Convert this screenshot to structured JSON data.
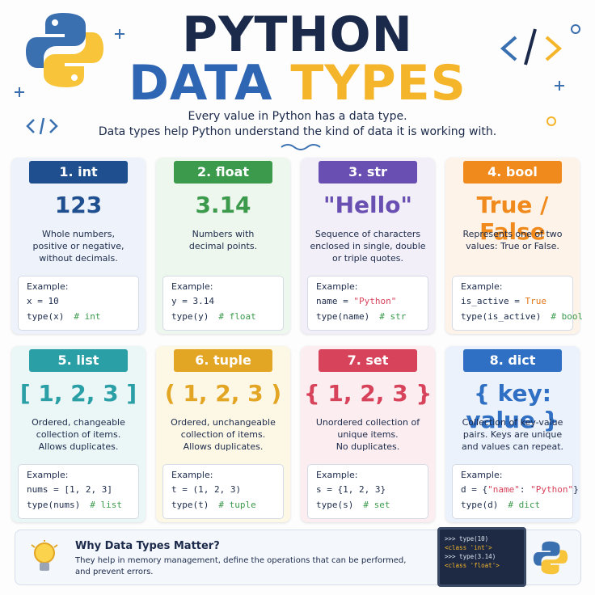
{
  "header": {
    "title_line1": "PYTHON",
    "title_word1": "DATA",
    "title_word2": "TYPES",
    "subtitle": [
      "Every value in Python has a data type.",
      "Data types help Python understand the kind of data it is working with."
    ]
  },
  "cards": [
    {
      "label": "1. int",
      "color": "#1f4f8f",
      "bg": "#eef3fb",
      "example_value": "123",
      "description": [
        "Whole numbers,",
        "positive or negative,",
        "without decimals."
      ],
      "example_title": "Example:",
      "code": [
        [
          "x = 10"
        ],
        [
          "type(x)",
          "# int"
        ]
      ]
    },
    {
      "label": "2. float",
      "color": "#3b9a4c",
      "bg": "#eef7ee",
      "example_value": "3.14",
      "description": [
        "Numbers with",
        "decimal points."
      ],
      "example_title": "Example:",
      "code": [
        [
          "y = 3.14"
        ],
        [
          "type(y)",
          "# float"
        ]
      ]
    },
    {
      "label": "3. str",
      "color": "#6a4fb2",
      "bg": "#f2eff9",
      "example_value": "\"Hello\"",
      "description": [
        "Sequence of characters",
        "enclosed in single, double",
        "or triple quotes."
      ],
      "example_title": "Example:",
      "code": [
        [
          "name = ",
          "\"Python\""
        ],
        [
          "type(name)",
          "# str"
        ]
      ]
    },
    {
      "label": "4. bool",
      "color": "#f08a1c",
      "bg": "#fdf3e8",
      "example_value": "True / False",
      "description": [
        "Represents one of two",
        "values: True or False."
      ],
      "example_title": "Example:",
      "code": [
        [
          "is_active = ",
          "True"
        ],
        [
          "type(is_active)",
          "# bool"
        ]
      ]
    },
    {
      "label": "5. list",
      "color": "#2aa0a6",
      "bg": "#ebf6f6",
      "example_value": "[ 1, 2, 3 ]",
      "description": [
        "Ordered, changeable",
        "collection of items.",
        "Allows duplicates."
      ],
      "example_title": "Example:",
      "code": [
        [
          "nums = [1, 2, 3]"
        ],
        [
          "type(nums)",
          "# list"
        ]
      ]
    },
    {
      "label": "6. tuple",
      "color": "#e2a624",
      "bg": "#fdf7e6",
      "example_value": "( 1, 2, 3 )",
      "description": [
        "Ordered, unchangeable",
        "collection of items.",
        "Allows duplicates."
      ],
      "example_title": "Example:",
      "code": [
        [
          "t = (1, 2, 3)"
        ],
        [
          "type(t)",
          "# tuple"
        ]
      ]
    },
    {
      "label": "7. set",
      "color": "#d8435c",
      "bg": "#fcedf0",
      "example_value": "{ 1, 2, 3 }",
      "description": [
        "Unordered collection of",
        "unique items.",
        "No duplicates."
      ],
      "example_title": "Example:",
      "code": [
        [
          "s = {1, 2, 3}"
        ],
        [
          "type(s)",
          "# set"
        ]
      ]
    },
    {
      "label": "8. dict",
      "color": "#2f6fc4",
      "bg": "#ecf2fb",
      "example_value": "{ key: value }",
      "description": [
        "Collection of key-value",
        "pairs. Keys are unique",
        "and values can repeat."
      ],
      "example_title": "Example:",
      "code": [
        [
          "d = {",
          "\"name\"",
          ": ",
          "\"Python\"",
          "}"
        ],
        [
          "type(d)",
          "# dict"
        ]
      ]
    }
  ],
  "footer": {
    "title": "Why Data Types Matter?",
    "description": [
      "They help in memory management, define the operations that can be performed,",
      "and prevent errors."
    ],
    "terminal": [
      ">>> type(10)",
      "<class 'int'>",
      ">>> type(3.14)",
      "<class 'float'>"
    ]
  }
}
